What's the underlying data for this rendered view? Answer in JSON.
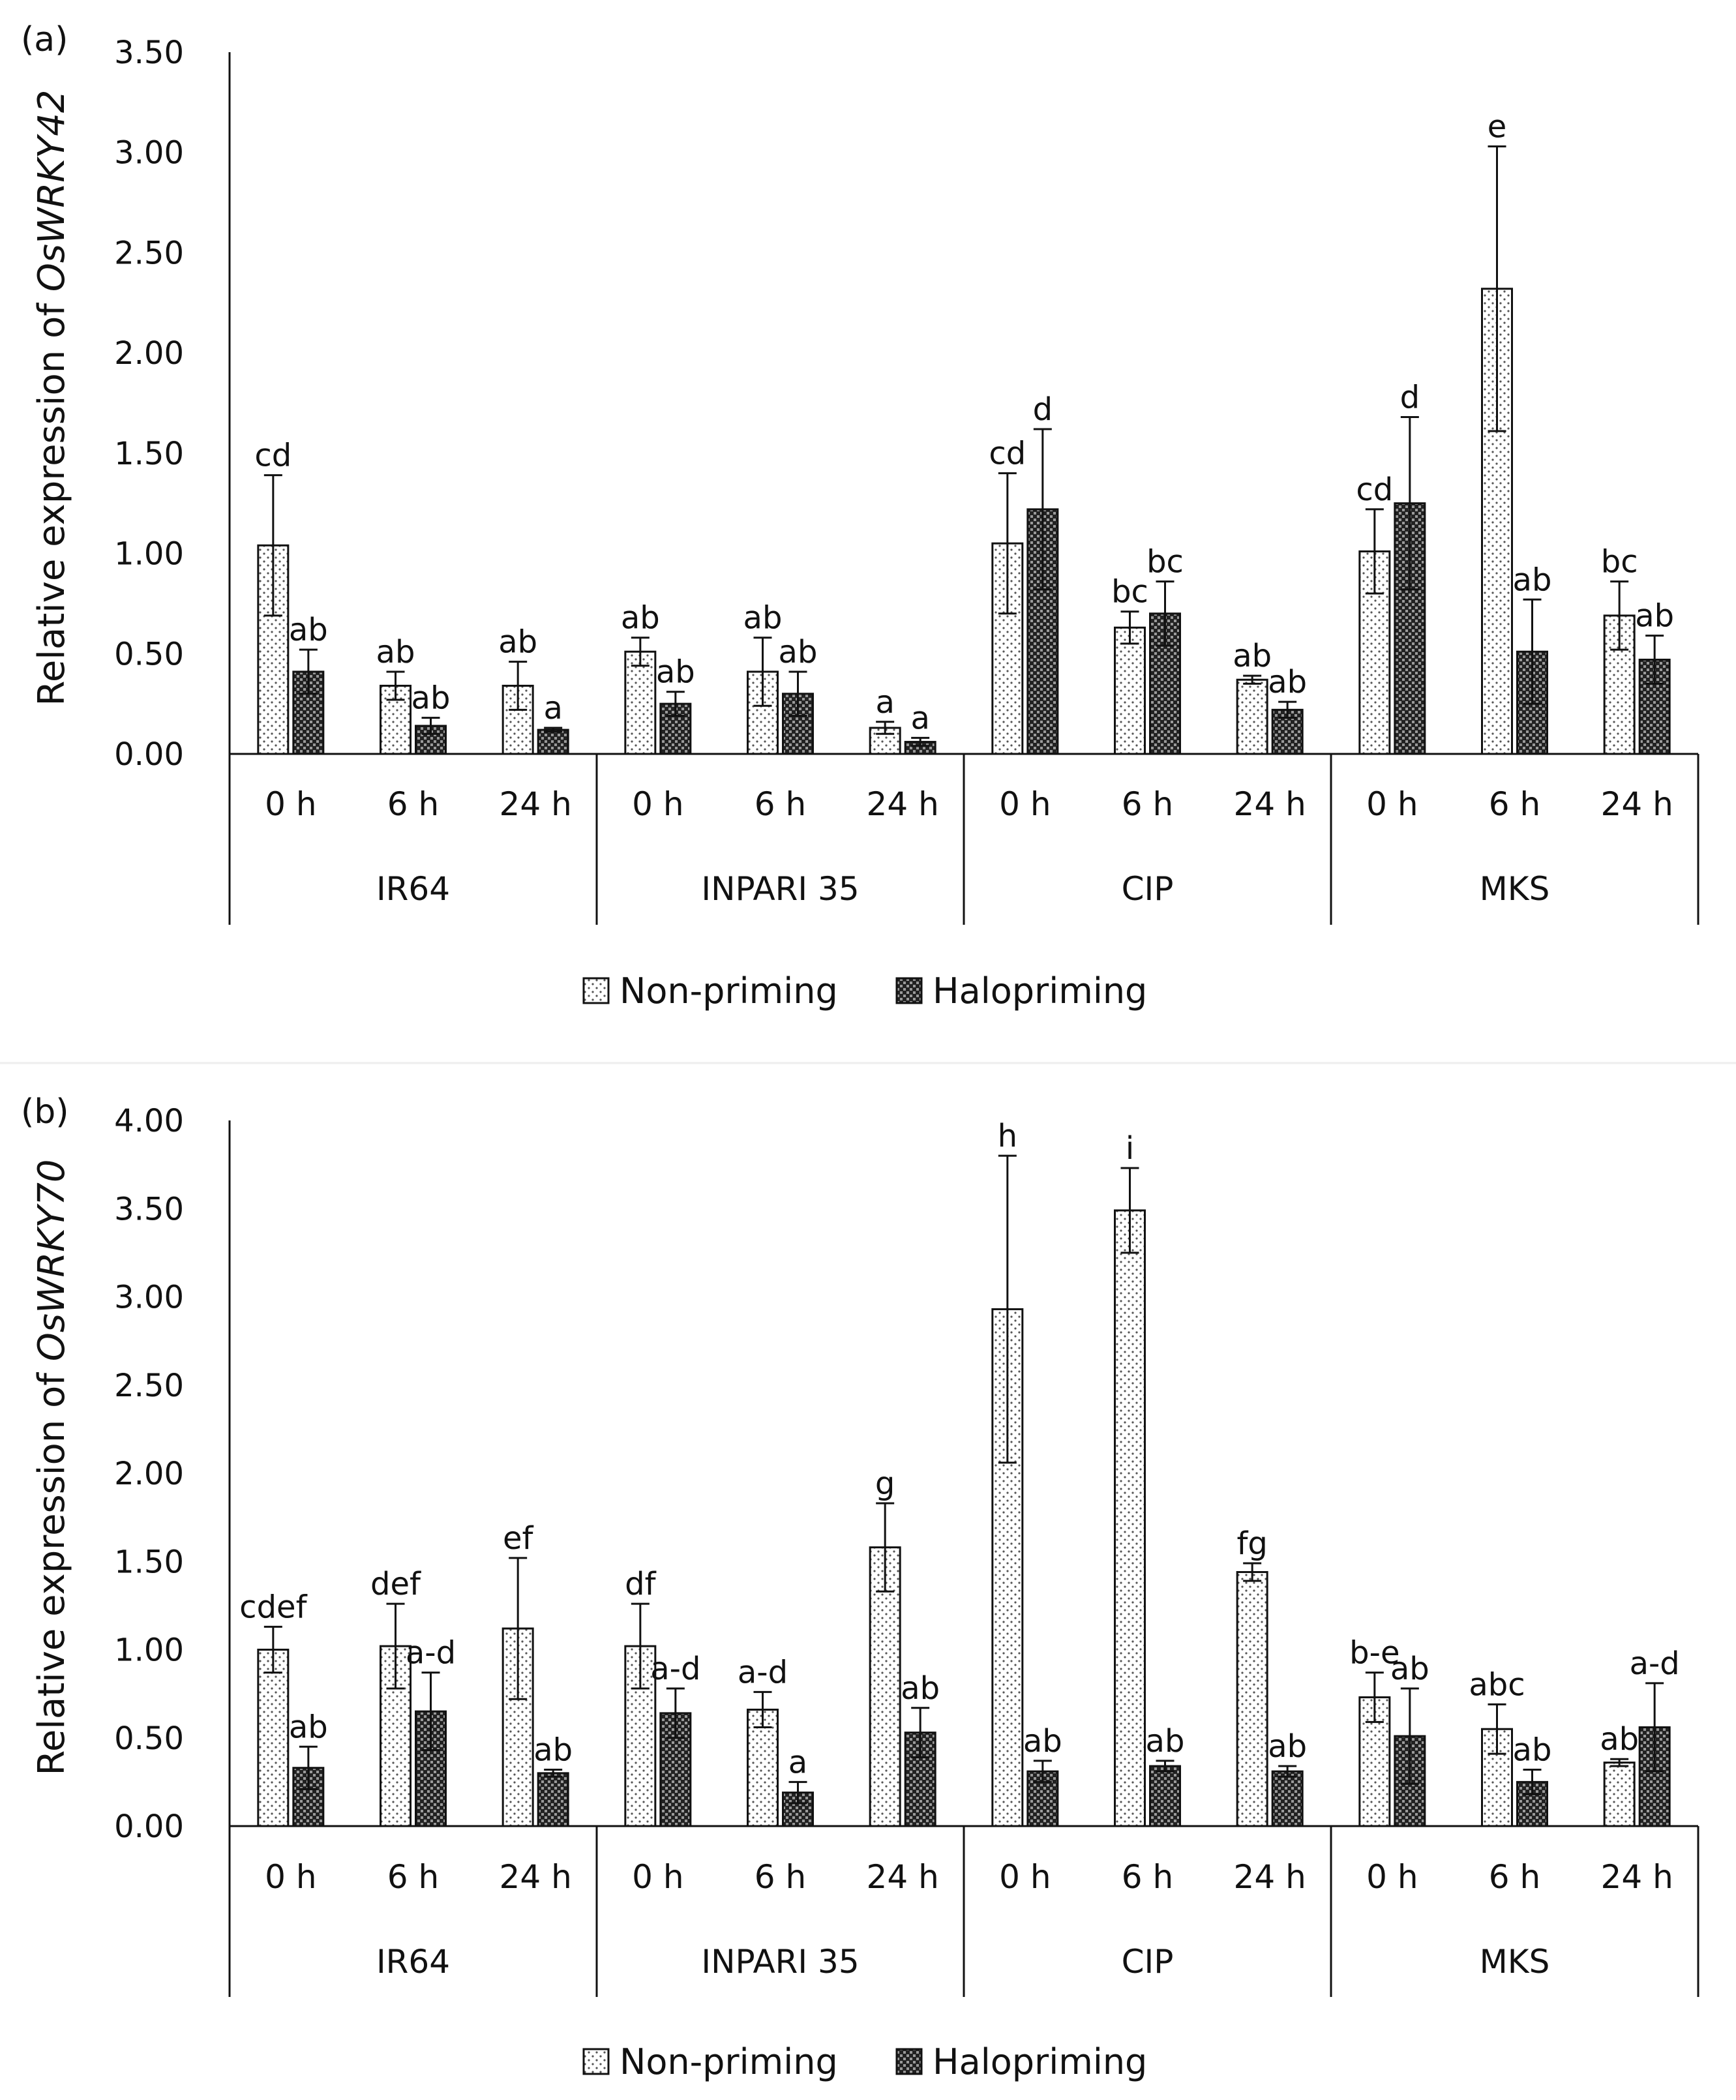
{
  "chart_data": [
    {
      "panel_label": "(a)",
      "type": "bar",
      "ylabel_prefix": "Relative expression of ",
      "ylabel_gene": "OsWRKY42",
      "ylim": [
        0,
        3.5
      ],
      "yticks": [
        "0.00",
        "0.50",
        "1.00",
        "1.50",
        "2.00",
        "2.50",
        "3.00",
        "3.50"
      ],
      "groups": [
        "IR64",
        "INPARI 35",
        "CIP",
        "MKS"
      ],
      "times": [
        "0 h",
        "6 h",
        "24 h"
      ],
      "series": [
        {
          "name": "Non-priming",
          "values": [
            1.04,
            0.34,
            0.34,
            0.51,
            0.41,
            0.13,
            1.05,
            0.63,
            0.37,
            1.01,
            2.32,
            0.69
          ],
          "errors": [
            0.35,
            0.07,
            0.12,
            0.07,
            0.17,
            0.03,
            0.35,
            0.08,
            0.02,
            0.21,
            0.71,
            0.17
          ],
          "letters": [
            "cd",
            "ab",
            "ab",
            "ab",
            "ab",
            "a",
            "cd",
            "bc",
            "ab",
            "cd",
            "e",
            "bc"
          ]
        },
        {
          "name": "Halopriming",
          "values": [
            0.41,
            0.14,
            0.12,
            0.25,
            0.3,
            0.06,
            1.22,
            0.7,
            0.22,
            1.25,
            0.51,
            0.47
          ],
          "errors": [
            0.11,
            0.04,
            0.01,
            0.06,
            0.11,
            0.02,
            0.4,
            0.16,
            0.04,
            0.43,
            0.26,
            0.12
          ],
          "letters": [
            "ab",
            "ab",
            "a",
            "ab",
            "ab",
            "a",
            "d",
            "bc",
            "ab",
            "d",
            "ab",
            "ab"
          ]
        }
      ]
    },
    {
      "panel_label": "(b)",
      "type": "bar",
      "ylabel_prefix": "Relative expression of ",
      "ylabel_gene": "OsWRKY70",
      "ylim": [
        0,
        4.0
      ],
      "yticks": [
        "0.00",
        "0.50",
        "1.00",
        "1.50",
        "2.00",
        "2.50",
        "3.00",
        "3.50",
        "4.00"
      ],
      "groups": [
        "IR64",
        "INPARI 35",
        "CIP",
        "MKS"
      ],
      "times": [
        "0 h",
        "6 h",
        "24 h"
      ],
      "series": [
        {
          "name": "Non-priming",
          "values": [
            1.0,
            1.02,
            1.12,
            1.02,
            0.66,
            1.58,
            2.93,
            3.49,
            1.44,
            0.73,
            0.55,
            0.36
          ],
          "errors": [
            0.13,
            0.24,
            0.4,
            0.24,
            0.1,
            0.25,
            0.87,
            0.24,
            0.05,
            0.14,
            0.14,
            0.02
          ],
          "letters": [
            "cdef",
            "def",
            "ef",
            "df",
            "a-d",
            "g",
            "h",
            "i",
            "fg",
            "b-e",
            "abc",
            "ab"
          ]
        },
        {
          "name": "Halopriming",
          "values": [
            0.33,
            0.65,
            0.3,
            0.64,
            0.19,
            0.53,
            0.31,
            0.34,
            0.31,
            0.51,
            0.25,
            0.56
          ],
          "errors": [
            0.12,
            0.22,
            0.02,
            0.14,
            0.06,
            0.14,
            0.06,
            0.03,
            0.03,
            0.27,
            0.07,
            0.25
          ],
          "letters": [
            "ab",
            "a-d",
            "ab",
            "a-d",
            "a",
            "ab",
            "ab",
            "ab",
            "ab",
            "ab",
            "ab",
            "a-d"
          ]
        }
      ]
    }
  ],
  "legend": {
    "items": [
      "Non-priming",
      "Halopriming"
    ]
  }
}
